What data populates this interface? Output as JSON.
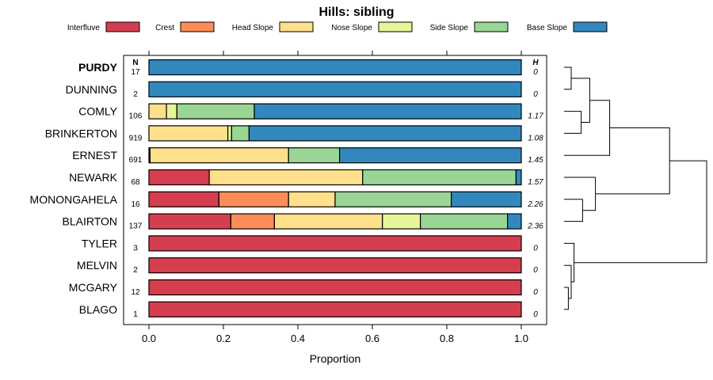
{
  "chart_data": {
    "type": "bar",
    "subtype": "stacked-horizontal-proportion",
    "title": "Hills: sibling",
    "xlabel": "Proportion",
    "xlim": [
      0,
      1
    ],
    "x_ticks": [
      "0.0",
      "0.2",
      "0.4",
      "0.6",
      "0.8",
      "1.0"
    ],
    "x_tick_values": [
      0,
      0.2,
      0.4,
      0.6,
      0.8,
      1.0
    ],
    "n_header": "N",
    "h_header": "H",
    "series": [
      {
        "name": "Interfluve",
        "color": "#d53e4f"
      },
      {
        "name": "Crest",
        "color": "#fc8d59"
      },
      {
        "name": "Head Slope",
        "color": "#fee08b"
      },
      {
        "name": "Nose Slope",
        "color": "#e6f598"
      },
      {
        "name": "Side Slope",
        "color": "#99d594"
      },
      {
        "name": "Base Slope",
        "color": "#3288bd"
      }
    ],
    "rows": [
      {
        "name": "PURDY",
        "bold": true,
        "n": "17",
        "h": "0",
        "values": [
          0,
          0,
          0,
          0,
          0,
          1.0
        ]
      },
      {
        "name": "DUNNING",
        "bold": false,
        "n": "2",
        "h": "0",
        "values": [
          0,
          0,
          0,
          0,
          0,
          1.0
        ]
      },
      {
        "name": "COMLY",
        "bold": false,
        "n": "106",
        "h": "1.17",
        "values": [
          0,
          0,
          0.047,
          0.028,
          0.208,
          0.717
        ]
      },
      {
        "name": "BRINKERTON",
        "bold": false,
        "n": "919",
        "h": "1.08",
        "values": [
          0,
          0,
          0.212,
          0.01,
          0.047,
          0.731
        ]
      },
      {
        "name": "ERNEST",
        "bold": false,
        "n": "691",
        "h": "1.45",
        "values": [
          0.003,
          0,
          0.372,
          0,
          0.137,
          0.488
        ]
      },
      {
        "name": "NEWARK",
        "bold": false,
        "n": "68",
        "h": "1.57",
        "values": [
          0.162,
          0,
          0.412,
          0,
          0.412,
          0.014
        ]
      },
      {
        "name": "MONONGAHELA",
        "bold": false,
        "n": "16",
        "h": "2.26",
        "values": [
          0.188,
          0.187,
          0.125,
          0,
          0.312,
          0.188
        ]
      },
      {
        "name": "BLAIRTON",
        "bold": false,
        "n": "137",
        "h": "2.36",
        "values": [
          0.22,
          0.117,
          0.29,
          0.102,
          0.234,
          0.037
        ]
      },
      {
        "name": "TYLER",
        "bold": false,
        "n": "3",
        "h": "0",
        "values": [
          1.0,
          0,
          0,
          0,
          0,
          0
        ]
      },
      {
        "name": "MELVIN",
        "bold": false,
        "n": "2",
        "h": "0",
        "values": [
          1.0,
          0,
          0,
          0,
          0,
          0
        ]
      },
      {
        "name": "MCGARY",
        "bold": false,
        "n": "12",
        "h": "0",
        "values": [
          1.0,
          0,
          0,
          0,
          0,
          0
        ]
      },
      {
        "name": "BLAGO",
        "bold": false,
        "n": "1",
        "h": "0",
        "values": [
          1.0,
          0,
          0,
          0,
          0,
          0
        ]
      }
    ],
    "dendrogram": {
      "merges": [
        {
          "a": 0,
          "b": 1,
          "height": 0.05
        },
        {
          "a": 2,
          "b": 3,
          "height": 0.12
        },
        {
          "a": "m0",
          "b": "m1",
          "height": 0.18
        },
        {
          "a": "m2",
          "b": 4,
          "height": 0.32
        },
        {
          "a": 6,
          "b": 7,
          "height": 0.13
        },
        {
          "a": 5,
          "b": "m4",
          "height": 0.22
        },
        {
          "a": "m3",
          "b": "m5",
          "height": 0.74
        },
        {
          "a": 10,
          "b": 11,
          "height": 0.03
        },
        {
          "a": 9,
          "b": "m7",
          "height": 0.05
        },
        {
          "a": 8,
          "b": "m8",
          "height": 0.07
        },
        {
          "a": "m6",
          "b": "m9",
          "height": 1.0
        }
      ]
    }
  }
}
